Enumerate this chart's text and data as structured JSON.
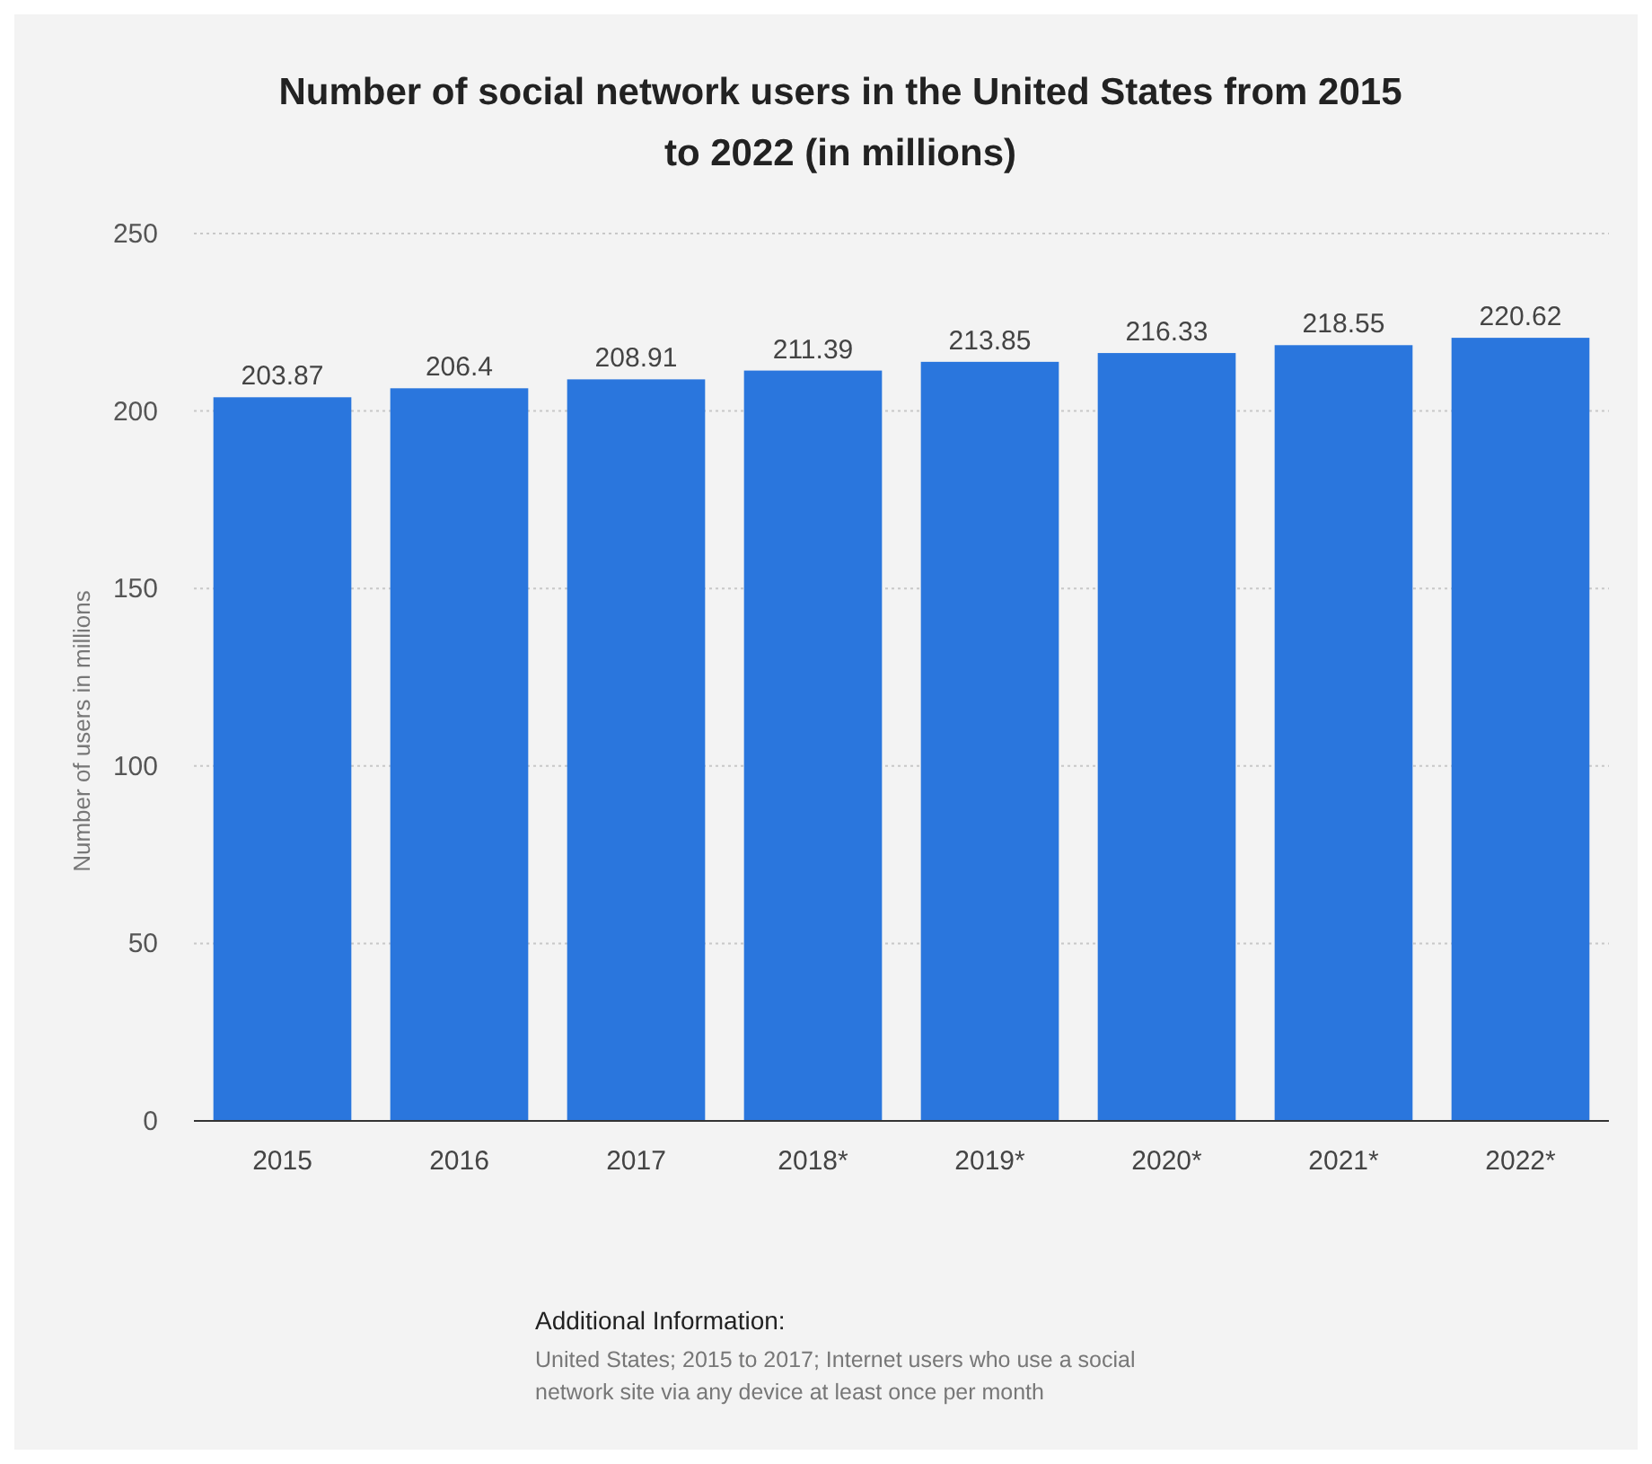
{
  "chart_data": {
    "type": "bar",
    "title": "Number of social network users in the United States from 2015 to 2022 (in millions)",
    "ylabel": "Number of users in millions",
    "categories": [
      "2015",
      "2016",
      "2017",
      "2018*",
      "2019*",
      "2020*",
      "2021*",
      "2022*"
    ],
    "values": [
      203.87,
      206.4,
      208.91,
      211.39,
      213.85,
      216.33,
      218.55,
      220.62
    ],
    "color": "#2a76dd",
    "ylim": [
      0,
      250
    ],
    "yticks": [
      0,
      50,
      100,
      150,
      200,
      250
    ],
    "grid": "y",
    "data_labels": true,
    "annotations": [
      "Additional Information:",
      "United States; 2015 to 2017; Internet users who use a social network site via any device at least once per month"
    ]
  }
}
